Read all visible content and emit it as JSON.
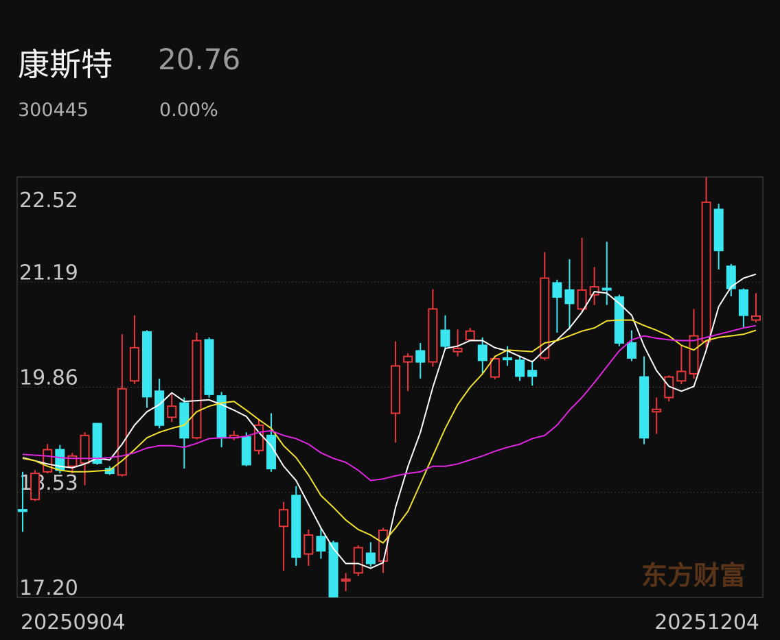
{
  "header": {
    "name": "康斯特",
    "price": "20.76",
    "code": "300445",
    "change": "0.00%"
  },
  "chart_data": {
    "type": "candlestick",
    "categories": [
      "20250904",
      null,
      null,
      null,
      null,
      null,
      null,
      null,
      null,
      null,
      null,
      null,
      null,
      null,
      null,
      null,
      null,
      null,
      null,
      null,
      null,
      null,
      null,
      null,
      null,
      null,
      null,
      null,
      null,
      null,
      null,
      null,
      null,
      null,
      null,
      null,
      null,
      null,
      null,
      null,
      null,
      null,
      null,
      null,
      null,
      null,
      null,
      null,
      null,
      null,
      null,
      null,
      null,
      null,
      null,
      null,
      null,
      null,
      null,
      "20251204"
    ],
    "open": [
      18.31,
      18.44,
      18.79,
      19.07,
      18.86,
      18.9,
      19.4,
      18.83,
      18.75,
      19.94,
      20.56,
      19.81,
      19.48,
      19.66,
      19.22,
      20.46,
      19.75,
      19.22,
      19.23,
      19.06,
      19.25,
      18.1,
      18.49,
      17.75,
      17.97,
      17.89,
      17.41,
      17.51,
      17.76,
      17.66,
      19.53,
      20.18,
      20.32,
      20.18,
      20.58,
      20.31,
      20.46,
      20.39,
      19.99,
      20.23,
      20.2,
      20.07,
      20.23,
      21.18,
      21.09,
      20.85,
      21.03,
      21.11,
      21.0,
      20.42,
      19.99,
      19.55,
      19.73,
      19.94,
      20.03,
      20.44,
      22.11,
      21.39,
      21.09,
      20.71
    ],
    "high": [
      18.79,
      18.81,
      19.14,
      19.13,
      19.03,
      19.29,
      19.41,
      18.86,
      20.53,
      20.77,
      20.58,
      19.97,
      19.77,
      19.73,
      20.55,
      20.49,
      19.8,
      19.31,
      19.29,
      19.45,
      19.53,
      18.41,
      18.61,
      18.06,
      18.08,
      17.92,
      17.51,
      17.86,
      17.9,
      18.08,
      20.44,
      20.29,
      20.42,
      21.1,
      20.77,
      20.59,
      20.61,
      20.49,
      20.26,
      20.38,
      20.25,
      20.2,
      21.57,
      21.22,
      21.48,
      21.75,
      21.38,
      21.7,
      21.03,
      20.58,
      20.25,
      19.73,
      20.01,
      20.38,
      20.85,
      22.52,
      22.18,
      21.42,
      21.11,
      21.05
    ],
    "low": [
      18.03,
      18.42,
      18.77,
      18.77,
      18.77,
      18.62,
      18.88,
      18.75,
      18.73,
      19.9,
      19.6,
      19.34,
      19.42,
      18.83,
      19.2,
      19.73,
      19.1,
      19.19,
      18.86,
      19.01,
      18.79,
      17.54,
      17.6,
      17.6,
      17.69,
      17.2,
      17.28,
      17.47,
      17.59,
      17.51,
      19.16,
      19.81,
      19.97,
      20.12,
      20.33,
      20.25,
      20.44,
      20.03,
      19.96,
      20.13,
      19.94,
      19.88,
      20.2,
      20.55,
      20.59,
      20.81,
      20.9,
      20.9,
      20.38,
      20.19,
      19.14,
      19.27,
      19.68,
      19.9,
      19.97,
      20.32,
      21.35,
      21.01,
      20.62,
      20.68
    ],
    "close": [
      18.29,
      18.77,
      19.07,
      18.81,
      18.99,
      19.25,
      18.9,
      18.77,
      19.84,
      20.36,
      19.74,
      19.38,
      19.62,
      19.22,
      20.45,
      19.77,
      19.22,
      19.25,
      18.88,
      19.38,
      18.83,
      18.31,
      17.71,
      17.99,
      17.79,
      17.21,
      17.43,
      17.83,
      17.63,
      18.05,
      20.13,
      20.25,
      20.18,
      20.85,
      20.38,
      20.35,
      20.57,
      20.2,
      20.22,
      20.21,
      20.0,
      20.0,
      21.24,
      21.0,
      20.92,
      21.09,
      21.13,
      21.1,
      20.42,
      20.23,
      19.22,
      19.58,
      19.99,
      20.06,
      20.51,
      22.2,
      21.59,
      21.11,
      20.77,
      20.76
    ],
    "up_color": "#e8383d",
    "down_color": "#3ae6f0",
    "series": [
      {
        "color": "#ffffff",
        "values": [
          18.97,
          18.93,
          18.89,
          18.86,
          18.84,
          18.89,
          18.96,
          18.94,
          19.14,
          19.38,
          19.55,
          19.64,
          19.79,
          19.68,
          19.69,
          19.7,
          19.64,
          19.57,
          19.49,
          19.29,
          19.12,
          18.86,
          18.68,
          18.38,
          18.08,
          17.82,
          17.63,
          17.63,
          17.57,
          17.64,
          18.34,
          18.86,
          19.29,
          19.86,
          20.35,
          20.38,
          20.45,
          20.45,
          20.36,
          20.32,
          20.25,
          20.18,
          20.33,
          20.46,
          20.61,
          20.81,
          21.07,
          21.05,
          20.92,
          20.77,
          20.38,
          20.07,
          19.87,
          19.81,
          19.87,
          20.33,
          20.88,
          21.13,
          21.24,
          21.29
        ]
      },
      {
        "color": "#f2e230",
        "values": [
          18.96,
          18.93,
          18.86,
          18.81,
          18.79,
          18.79,
          18.8,
          18.81,
          18.93,
          19.07,
          19.22,
          19.29,
          19.34,
          19.38,
          19.55,
          19.62,
          19.66,
          19.68,
          19.57,
          19.45,
          19.34,
          19.12,
          18.97,
          18.75,
          18.49,
          18.34,
          18.18,
          18.06,
          17.99,
          17.89,
          18.08,
          18.29,
          18.64,
          18.99,
          19.34,
          19.64,
          19.86,
          20.03,
          20.25,
          20.33,
          20.32,
          20.31,
          20.42,
          20.45,
          20.51,
          20.57,
          20.61,
          20.7,
          20.71,
          20.71,
          20.64,
          20.58,
          20.51,
          20.39,
          20.33,
          20.45,
          20.49,
          20.51,
          20.53,
          20.58
        ]
      },
      {
        "color": "#e026e0",
        "values": [
          19.01,
          19.0,
          18.99,
          18.97,
          18.96,
          18.96,
          18.96,
          18.97,
          18.99,
          19.03,
          19.09,
          19.12,
          19.12,
          19.1,
          19.15,
          19.21,
          19.22,
          19.22,
          19.24,
          19.29,
          19.31,
          19.25,
          19.21,
          19.14,
          19.03,
          18.96,
          18.91,
          18.81,
          18.68,
          18.7,
          18.74,
          18.77,
          18.79,
          18.86,
          18.86,
          18.89,
          18.94,
          18.99,
          19.05,
          19.1,
          19.14,
          19.21,
          19.25,
          19.38,
          19.57,
          19.73,
          19.92,
          20.12,
          20.32,
          20.46,
          20.51,
          20.48,
          20.46,
          20.45,
          20.45,
          20.49,
          20.53,
          20.57,
          20.61,
          20.64
        ]
      }
    ],
    "ylim": [
      17.2,
      22.52
    ],
    "yticks": [
      {
        "value": 17.2,
        "label": "17.20"
      },
      18.53,
      19.86,
      21.19,
      22.52
    ],
    "grid": true,
    "watermark": "东方财富"
  }
}
